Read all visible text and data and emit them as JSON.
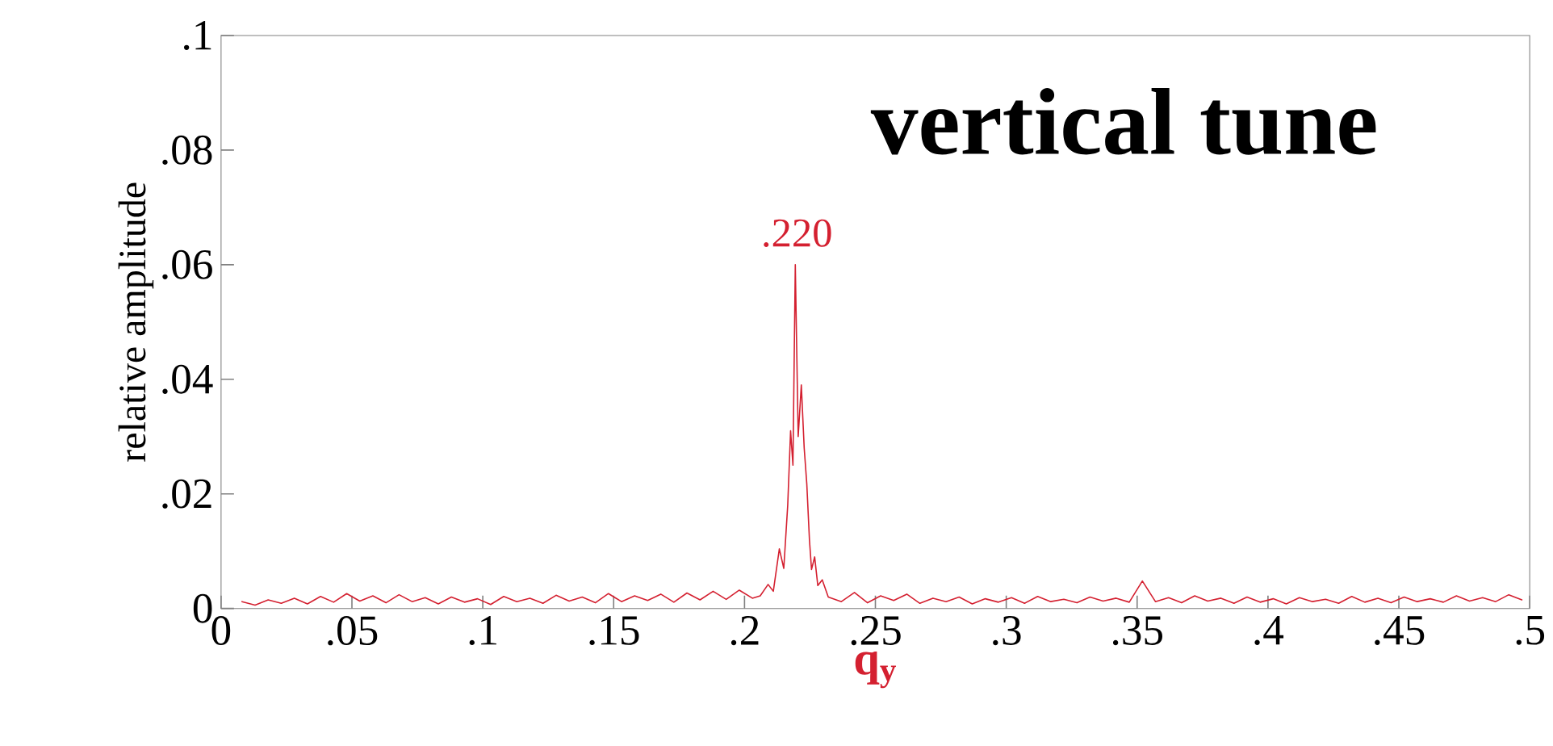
{
  "chart_data": {
    "type": "line",
    "title": "vertical tune",
    "xlabel": "q$_{y}$",
    "ylabel": "relative amplitude",
    "annotations": [
      {
        "text": ".220",
        "x": 0.22,
        "y": 0.06
      }
    ],
    "xlim": [
      0,
      0.5
    ],
    "ylim": [
      0,
      0.1
    ],
    "xticks": [
      0,
      {
        "value": 0.05,
        "label": ".05"
      },
      {
        "value": 0.1,
        "label": ".1"
      },
      {
        "value": 0.15,
        "label": ".15"
      },
      {
        "value": 0.2,
        "label": ".2"
      },
      {
        "value": 0.25,
        "label": ".25"
      },
      {
        "value": 0.3,
        "label": ".3"
      },
      {
        "value": 0.35,
        "label": ".35"
      },
      {
        "value": 0.4,
        "label": ".4"
      },
      {
        "value": 0.45,
        "label": ".45"
      },
      {
        "value": 0.5,
        "label": ".5"
      }
    ],
    "yticks": [
      0,
      {
        "value": 0.02,
        "label": ".02"
      },
      {
        "value": 0.04,
        "label": ".04"
      },
      {
        "value": 0.06,
        "label": ".06"
      },
      {
        "value": 0.08,
        "label": ".08"
      },
      {
        "value": 0.1,
        "label": ".1"
      }
    ],
    "grid": false,
    "marker": "none",
    "line_style": "solid",
    "series": [
      {
        "color": "#d42030",
        "x": [
          0.008,
          0.013,
          0.018,
          0.023,
          0.028,
          0.033,
          0.038,
          0.043,
          0.048,
          0.053,
          0.058,
          0.063,
          0.068,
          0.073,
          0.078,
          0.083,
          0.088,
          0.093,
          0.098,
          0.103,
          0.108,
          0.113,
          0.118,
          0.123,
          0.128,
          0.133,
          0.138,
          0.143,
          0.148,
          0.153,
          0.158,
          0.163,
          0.168,
          0.173,
          0.178,
          0.183,
          0.188,
          0.193,
          0.198,
          0.203,
          0.206,
          0.209,
          0.211,
          0.2133,
          0.215,
          0.2165,
          0.2176,
          0.2185,
          0.2194,
          0.2205,
          0.2217,
          0.2228,
          0.2238,
          0.2248,
          0.2256,
          0.2268,
          0.228,
          0.2297,
          0.232,
          0.237,
          0.242,
          0.247,
          0.252,
          0.257,
          0.262,
          0.267,
          0.272,
          0.277,
          0.282,
          0.287,
          0.292,
          0.297,
          0.302,
          0.307,
          0.312,
          0.317,
          0.322,
          0.327,
          0.332,
          0.337,
          0.342,
          0.347,
          0.352,
          0.357,
          0.362,
          0.367,
          0.372,
          0.377,
          0.382,
          0.387,
          0.392,
          0.397,
          0.402,
          0.407,
          0.412,
          0.417,
          0.422,
          0.427,
          0.432,
          0.437,
          0.442,
          0.447,
          0.452,
          0.457,
          0.462,
          0.467,
          0.472,
          0.477,
          0.482,
          0.487,
          0.492,
          0.497
        ],
        "values": [
          0.0012,
          0.0006,
          0.0015,
          0.0009,
          0.0018,
          0.0008,
          0.0021,
          0.0011,
          0.0026,
          0.0013,
          0.0022,
          0.001,
          0.0024,
          0.0012,
          0.0019,
          0.0008,
          0.002,
          0.0011,
          0.0017,
          0.0007,
          0.0021,
          0.0012,
          0.0018,
          0.0009,
          0.0023,
          0.0013,
          0.002,
          0.001,
          0.0026,
          0.0012,
          0.0022,
          0.0014,
          0.0025,
          0.0011,
          0.0027,
          0.0015,
          0.003,
          0.0016,
          0.0032,
          0.0018,
          0.0022,
          0.0042,
          0.003,
          0.0104,
          0.007,
          0.018,
          0.031,
          0.025,
          0.06,
          0.03,
          0.039,
          0.028,
          0.0217,
          0.012,
          0.0068,
          0.009,
          0.004,
          0.005,
          0.002,
          0.0012,
          0.0028,
          0.001,
          0.0022,
          0.0014,
          0.0025,
          0.0009,
          0.0018,
          0.0012,
          0.002,
          0.0008,
          0.0017,
          0.0011,
          0.0019,
          0.0009,
          0.0021,
          0.0012,
          0.0016,
          0.001,
          0.002,
          0.0013,
          0.0018,
          0.0011,
          0.0048,
          0.0012,
          0.0019,
          0.001,
          0.0022,
          0.0013,
          0.0018,
          0.0009,
          0.002,
          0.0011,
          0.0017,
          0.0008,
          0.0019,
          0.0012,
          0.0016,
          0.0009,
          0.0021,
          0.0011,
          0.0018,
          0.001,
          0.002,
          0.0012,
          0.0017,
          0.0011,
          0.0022,
          0.0013,
          0.0019,
          0.0012,
          0.0024,
          0.0015
        ]
      }
    ]
  }
}
